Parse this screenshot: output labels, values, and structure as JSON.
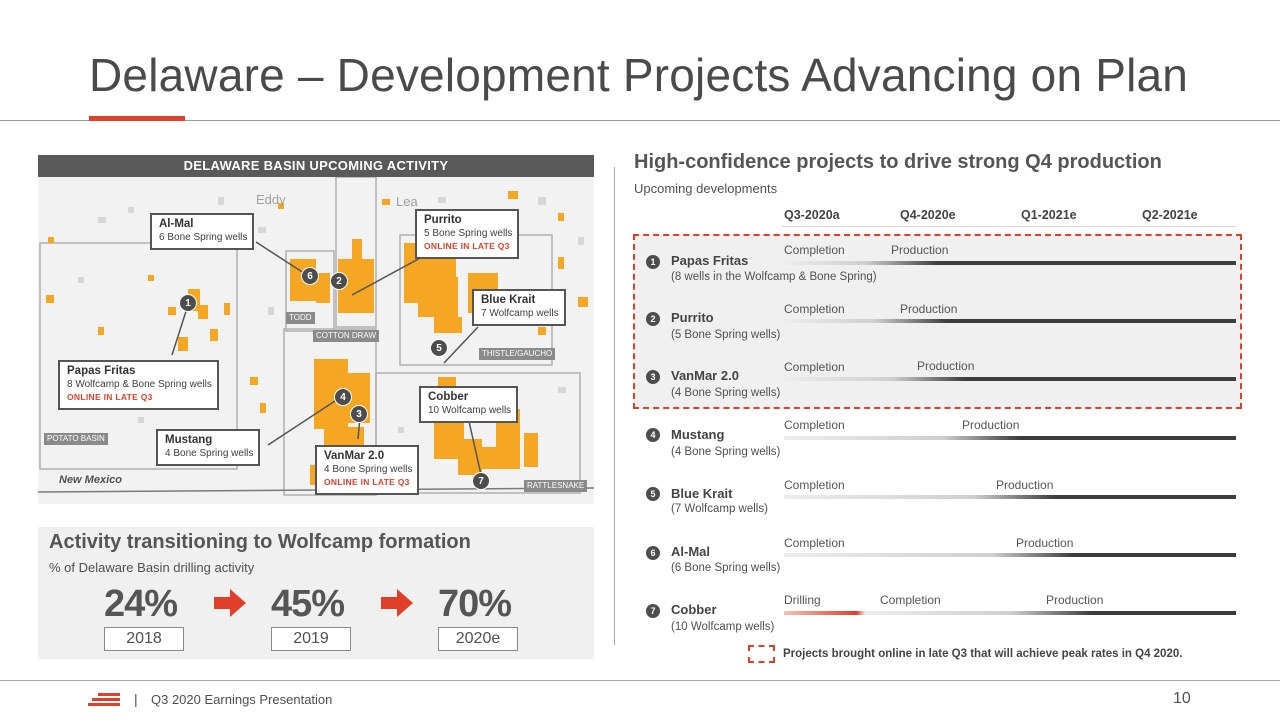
{
  "title": "Delaware – Development Projects Advancing on Plan",
  "map": {
    "header": "DELAWARE BASIN UPCOMING ACTIVITY",
    "counties": [
      "Eddy",
      "Lea"
    ],
    "state_label": "New Mexico",
    "unit_labels": [
      "TODD",
      "COTTON DRAW",
      "THISTLE/GAUCHO",
      "POTATO BASIN",
      "RATTLESNAKE"
    ],
    "callouts": [
      {
        "name": "Al-Mal",
        "detail": "6 Bone Spring wells",
        "online": ""
      },
      {
        "name": "Purrito",
        "detail": "5 Bone Spring wells",
        "online": "ONLINE IN LATE Q3"
      },
      {
        "name": "Blue Krait",
        "detail": "7 Wolfcamp wells",
        "online": ""
      },
      {
        "name": "Papas Fritas",
        "detail": "8 Wolfcamp & Bone Spring wells",
        "online": "ONLINE IN LATE Q3"
      },
      {
        "name": "Cobber",
        "detail": "10 Wolfcamp wells",
        "online": ""
      },
      {
        "name": "Mustang",
        "detail": "4 Bone Spring wells",
        "online": ""
      },
      {
        "name": "VanMar 2.0",
        "detail": "4 Bone Spring wells",
        "online": "ONLINE IN LATE Q3"
      }
    ],
    "markers": [
      "1",
      "2",
      "3",
      "4",
      "5",
      "6",
      "7"
    ]
  },
  "wolfcamp": {
    "title": "Activity transitioning to Wolfcamp formation",
    "subtitle": "% of Delaware Basin drilling activity",
    "stats": [
      {
        "value": "24%",
        "year": "2018"
      },
      {
        "value": "45%",
        "year": "2019"
      },
      {
        "value": "70%",
        "year": "2020e"
      }
    ]
  },
  "schedule": {
    "title": "High-confidence projects to drive strong Q4 production",
    "subtitle": "Upcoming developments",
    "quarters": [
      "Q3-2020a",
      "Q4-2020e",
      "Q1-2021e",
      "Q2-2021e"
    ],
    "projects": [
      {
        "num": "1",
        "name": "Papas Fritas",
        "detail": "(8 wells in the Wolfcamp & Bone Spring)",
        "phases": [
          "Completion",
          "Production"
        ]
      },
      {
        "num": "2",
        "name": "Purrito",
        "detail": "(5 Bone Spring wells)",
        "phases": [
          "Completion",
          "Production"
        ]
      },
      {
        "num": "3",
        "name": "VanMar 2.0",
        "detail": "(4 Bone Spring wells)",
        "phases": [
          "Completion",
          "Production"
        ]
      },
      {
        "num": "4",
        "name": "Mustang",
        "detail": "(4 Bone Spring wells)",
        "phases": [
          "Completion",
          "Production"
        ]
      },
      {
        "num": "5",
        "name": "Blue Krait",
        "detail": "(7 Wolfcamp wells)",
        "phases": [
          "Completion",
          "Production"
        ]
      },
      {
        "num": "6",
        "name": "Al-Mal",
        "detail": "(6 Bone Spring wells)",
        "phases": [
          "Completion",
          "Production"
        ]
      },
      {
        "num": "7",
        "name": "Cobber",
        "detail": "(10 Wolfcamp wells)",
        "phases": [
          "Drilling",
          "Completion",
          "Production"
        ]
      }
    ],
    "legend": "Projects brought online in late Q3 that will achieve peak rates in Q4 2020."
  },
  "footer": {
    "separator": "|",
    "text": "Q3 2020 Earnings Presentation",
    "page": "10"
  },
  "colors": {
    "accent": "#e0402a",
    "acreage": "#f5a623",
    "dark_bar": "#3d3d3d"
  }
}
